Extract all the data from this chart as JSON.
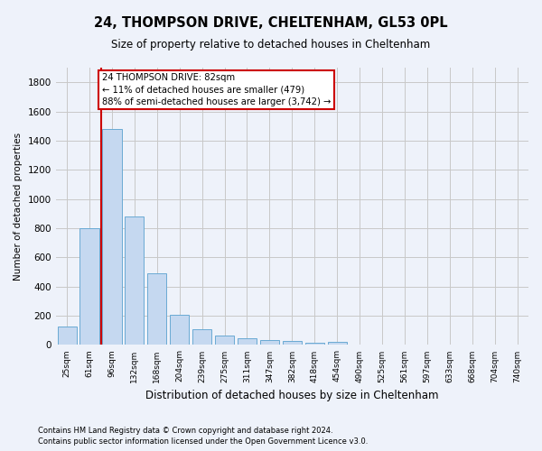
{
  "title_line1": "24, THOMPSON DRIVE, CHELTENHAM, GL53 0PL",
  "title_line2": "Size of property relative to detached houses in Cheltenham",
  "xlabel": "Distribution of detached houses by size in Cheltenham",
  "ylabel": "Number of detached properties",
  "bar_labels": [
    "25sqm",
    "61sqm",
    "96sqm",
    "132sqm",
    "168sqm",
    "204sqm",
    "239sqm",
    "275sqm",
    "311sqm",
    "347sqm",
    "382sqm",
    "418sqm",
    "454sqm",
    "490sqm",
    "525sqm",
    "561sqm",
    "597sqm",
    "633sqm",
    "668sqm",
    "704sqm",
    "740sqm"
  ],
  "bar_values": [
    125,
    800,
    1480,
    880,
    490,
    205,
    105,
    65,
    45,
    35,
    30,
    15,
    20,
    5,
    5,
    5,
    5,
    5,
    5,
    5,
    5
  ],
  "bar_color": "#c5d8f0",
  "bar_edge_color": "#6aaad4",
  "grid_color": "#c8c8c8",
  "vline_color": "#cc0000",
  "annotation_text": "24 THOMPSON DRIVE: 82sqm\n← 11% of detached houses are smaller (479)\n88% of semi-detached houses are larger (3,742) →",
  "annotation_box_color": "#ffffff",
  "annotation_box_edge": "#cc0000",
  "ylim": [
    0,
    1900
  ],
  "yticks": [
    0,
    200,
    400,
    600,
    800,
    1000,
    1200,
    1400,
    1600,
    1800
  ],
  "footnote1": "Contains HM Land Registry data © Crown copyright and database right 2024.",
  "footnote2": "Contains public sector information licensed under the Open Government Licence v3.0.",
  "bg_color": "#eef2fa"
}
